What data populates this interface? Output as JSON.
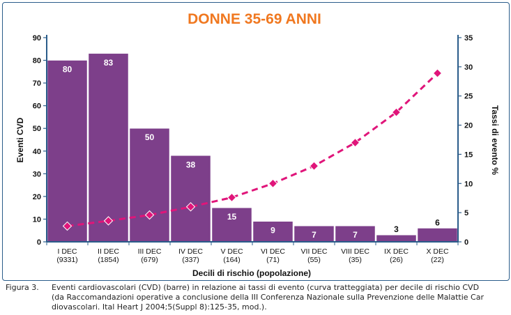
{
  "chart_data": {
    "type": "bar",
    "title": "DONNE 35-69 ANNI",
    "xlabel": "Decili di rischio (popolazione)",
    "ylabel": "Eventi CVD",
    "y2label": "Tassi di evento %",
    "ylim": [
      0,
      90
    ],
    "yticks": [
      0,
      10,
      20,
      30,
      40,
      50,
      60,
      70,
      80,
      90
    ],
    "y2lim": [
      0,
      35
    ],
    "y2ticks": [
      0,
      5,
      10,
      15,
      20,
      25,
      30,
      35
    ],
    "categories": [
      "I DEC",
      "II DEC",
      "III DEC",
      "IV DEC",
      "V DEC",
      "VI DEC",
      "VII DEC",
      "VIII DEC",
      "IX DEC",
      "X DEC"
    ],
    "category_sublabels": [
      "(9331)",
      "(1854)",
      "(679)",
      "(337)",
      "(164)",
      "(71)",
      "(55)",
      "(35)",
      "(26)",
      "(22)"
    ],
    "series": [
      {
        "type": "bar",
        "axis": "left",
        "values": [
          80,
          83,
          50,
          38,
          15,
          9,
          7,
          7,
          3,
          6
        ]
      },
      {
        "type": "line",
        "style": "dashed",
        "marker": "diamond",
        "axis": "right",
        "values": [
          2.7,
          3.6,
          4.6,
          6.0,
          7.6,
          10.0,
          13.0,
          17.0,
          22.2,
          28.9
        ]
      }
    ],
    "grid": false,
    "colors": {
      "bar": "#7d3f8a",
      "bar_label": "#ffffff",
      "line": "#e0157a",
      "title": "#f07820",
      "axis": "#2a5c8a"
    }
  },
  "caption": {
    "label": "Figura 3.",
    "lines": [
      "Eventi cardiovascolari (CVD) (barre) in relazione ai tassi di evento (curva tratteggiata) per decile di rischio CVD",
      "(da Raccomandazioni operative a conclusione della III Conferenza Nazionale sulla Prevenzione delle Malattie Car",
      "diovascolari. Ital Heart J 2004;5(Suppl 8):125-35, mod.)."
    ]
  }
}
